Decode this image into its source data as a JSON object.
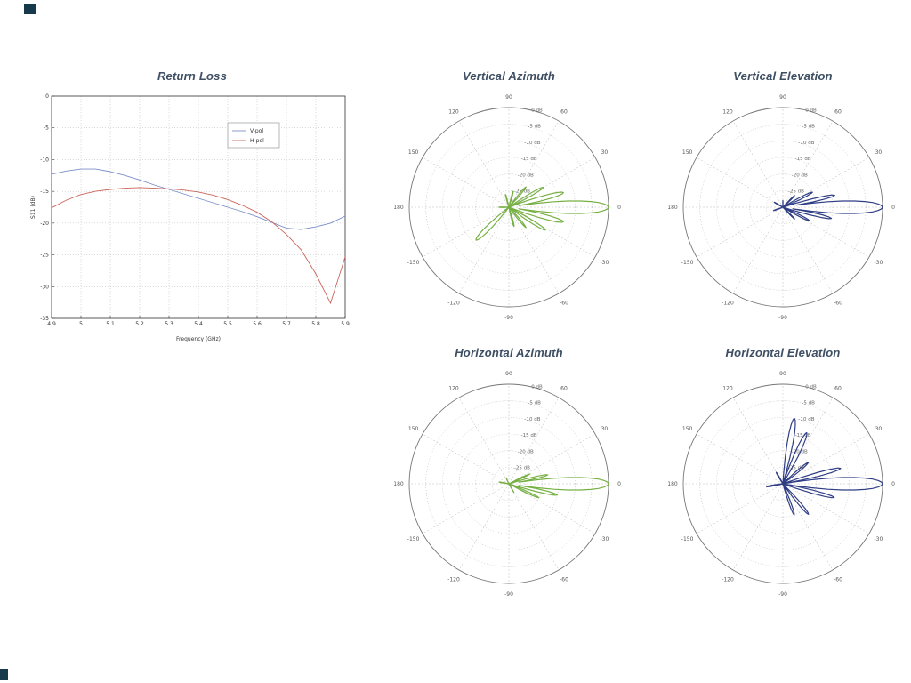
{
  "page": {
    "background": "#ffffff",
    "mark_color": "#16394b",
    "title_color": "#3e4f63"
  },
  "chart_data": [
    {
      "type": "line",
      "title": "Return Loss",
      "xlabel": "Frequency (GHz)",
      "ylabel": "S11 (dB)",
      "xlim": [
        4.9,
        5.9
      ],
      "ylim": [
        -35,
        0
      ],
      "xticks": [
        4.9,
        5,
        5.1,
        5.2,
        5.3,
        5.4,
        5.5,
        5.6,
        5.7,
        5.8,
        5.9
      ],
      "yticks": [
        0,
        -5,
        -10,
        -15,
        -20,
        -25,
        -30,
        -35
      ],
      "grid": "dotted",
      "legend_position": "upper-right-inside",
      "series": [
        {
          "name": "V-pol",
          "color": "#7b8ec8",
          "x": [
            4.9,
            4.95,
            5,
            5.05,
            5.1,
            5.15,
            5.2,
            5.25,
            5.3,
            5.35,
            5.4,
            5.45,
            5.5,
            5.55,
            5.6,
            5.65,
            5.7,
            5.75,
            5.8,
            5.85,
            5.9
          ],
          "y": [
            -12.3,
            -11.8,
            -11.5,
            -11.5,
            -11.9,
            -12.5,
            -13.2,
            -14,
            -14.7,
            -15.4,
            -16.1,
            -16.8,
            -17.5,
            -18.2,
            -19,
            -19.9,
            -20.8,
            -21,
            -20.6,
            -20,
            -18.9
          ]
        },
        {
          "name": "H-pol",
          "color": "#c9655c",
          "x": [
            4.9,
            4.95,
            5,
            5.05,
            5.1,
            5.15,
            5.2,
            5.25,
            5.3,
            5.35,
            5.4,
            5.45,
            5.5,
            5.55,
            5.6,
            5.65,
            5.7,
            5.75,
            5.8,
            5.85,
            5.9
          ],
          "y": [
            -17.6,
            -16.4,
            -15.5,
            -15,
            -14.7,
            -14.5,
            -14.4,
            -14.5,
            -14.6,
            -14.8,
            -15.1,
            -15.6,
            -16.3,
            -17.2,
            -18.3,
            -19.8,
            -21.8,
            -24.2,
            -28,
            -32.6,
            -25.3
          ]
        }
      ]
    },
    {
      "type": "polar",
      "title": "Vertical Azimuth",
      "color": "#76b043",
      "rticks_db": [
        0,
        -5,
        -10,
        -15,
        -20,
        -25
      ],
      "rmin_db": -30,
      "rmax_db": 0,
      "angle_ticks_deg": [
        0,
        30,
        60,
        90,
        120,
        150,
        180,
        -150,
        -120,
        -90,
        -60,
        -30
      ],
      "lobes": [
        {
          "angle_deg": 0,
          "peak_db": 0,
          "halfwidth_deg": 6
        },
        {
          "angle_deg": 15,
          "peak_db": -13,
          "halfwidth_deg": 5
        },
        {
          "angle_deg": -15,
          "peak_db": -13,
          "halfwidth_deg": 5
        },
        {
          "angle_deg": 30,
          "peak_db": -18,
          "halfwidth_deg": 5
        },
        {
          "angle_deg": -32,
          "peak_db": -17,
          "halfwidth_deg": 5
        },
        {
          "angle_deg": 50,
          "peak_db": -22,
          "halfwidth_deg": 5
        },
        {
          "angle_deg": -50,
          "peak_db": -22,
          "halfwidth_deg": 5
        },
        {
          "angle_deg": 75,
          "peak_db": -25,
          "halfwidth_deg": 6
        },
        {
          "angle_deg": -75,
          "peak_db": -24,
          "halfwidth_deg": 6
        },
        {
          "angle_deg": 105,
          "peak_db": -26,
          "halfwidth_deg": 6
        },
        {
          "angle_deg": -135,
          "peak_db": -16,
          "halfwidth_deg": 7
        },
        {
          "angle_deg": 180,
          "peak_db": -27,
          "halfwidth_deg": 7
        }
      ]
    },
    {
      "type": "polar",
      "title": "Vertical Elevation",
      "color": "#2e3d84",
      "rticks_db": [
        0,
        -5,
        -10,
        -15,
        -20,
        -25
      ],
      "rmin_db": -30,
      "rmax_db": 0,
      "angle_ticks_deg": [
        0,
        30,
        60,
        90,
        120,
        150,
        180,
        -150,
        -120,
        -90,
        -60,
        -30
      ],
      "lobes": [
        {
          "angle_deg": 0,
          "peak_db": 0,
          "halfwidth_deg": 6
        },
        {
          "angle_deg": 13,
          "peak_db": -14,
          "halfwidth_deg": 4
        },
        {
          "angle_deg": -13,
          "peak_db": -15,
          "halfwidth_deg": 4
        },
        {
          "angle_deg": 27,
          "peak_db": -20,
          "halfwidth_deg": 5
        },
        {
          "angle_deg": -27,
          "peak_db": -21,
          "halfwidth_deg": 5
        },
        {
          "angle_deg": 45,
          "peak_db": -25,
          "halfwidth_deg": 5
        },
        {
          "angle_deg": -45,
          "peak_db": -25,
          "halfwidth_deg": 5
        },
        {
          "angle_deg": 150,
          "peak_db": -27,
          "halfwidth_deg": 7
        },
        {
          "angle_deg": -160,
          "peak_db": -27,
          "halfwidth_deg": 7
        },
        {
          "angle_deg": 90,
          "peak_db": -28,
          "halfwidth_deg": 5
        }
      ]
    },
    {
      "type": "polar",
      "title": "Horizontal Azimuth",
      "color": "#76b043",
      "rticks_db": [
        0,
        -5,
        -10,
        -15,
        -20,
        -25
      ],
      "rmin_db": -30,
      "rmax_db": 0,
      "angle_ticks_deg": [
        0,
        30,
        60,
        90,
        120,
        150,
        180,
        -150,
        -120,
        -90,
        -60,
        -30
      ],
      "lobes": [
        {
          "angle_deg": 0,
          "peak_db": 0,
          "halfwidth_deg": 6
        },
        {
          "angle_deg": -13,
          "peak_db": -15,
          "halfwidth_deg": 4
        },
        {
          "angle_deg": 13,
          "peak_db": -18,
          "halfwidth_deg": 4
        },
        {
          "angle_deg": -25,
          "peak_db": -20,
          "halfwidth_deg": 4
        },
        {
          "angle_deg": 25,
          "peak_db": -23,
          "halfwidth_deg": 4
        },
        {
          "angle_deg": 170,
          "peak_db": -27,
          "halfwidth_deg": 8
        },
        {
          "angle_deg": 115,
          "peak_db": -28,
          "halfwidth_deg": 6
        },
        {
          "angle_deg": -60,
          "peak_db": -27,
          "halfwidth_deg": 5
        }
      ]
    },
    {
      "type": "polar",
      "title": "Horizontal Elevation",
      "color": "#2e3d84",
      "rticks_db": [
        0,
        -5,
        -10,
        -15,
        -20,
        -25
      ],
      "rmin_db": -30,
      "rmax_db": 0,
      "angle_ticks_deg": [
        0,
        30,
        60,
        90,
        120,
        150,
        180,
        -150,
        -120,
        -90,
        -60,
        -30
      ],
      "lobes": [
        {
          "angle_deg": 0,
          "peak_db": 0,
          "halfwidth_deg": 6
        },
        {
          "angle_deg": 15,
          "peak_db": -12,
          "halfwidth_deg": 4
        },
        {
          "angle_deg": -15,
          "peak_db": -14,
          "halfwidth_deg": 4
        },
        {
          "angle_deg": 65,
          "peak_db": -13,
          "halfwidth_deg": 5
        },
        {
          "angle_deg": 80,
          "peak_db": -10,
          "halfwidth_deg": 5
        },
        {
          "angle_deg": 40,
          "peak_db": -20,
          "halfwidth_deg": 5
        },
        {
          "angle_deg": -50,
          "peak_db": -18,
          "halfwidth_deg": 5
        },
        {
          "angle_deg": -70,
          "peak_db": -20,
          "halfwidth_deg": 5
        },
        {
          "angle_deg": -170,
          "peak_db": -25,
          "halfwidth_deg": 7
        },
        {
          "angle_deg": 120,
          "peak_db": -26,
          "halfwidth_deg": 6
        }
      ]
    }
  ]
}
